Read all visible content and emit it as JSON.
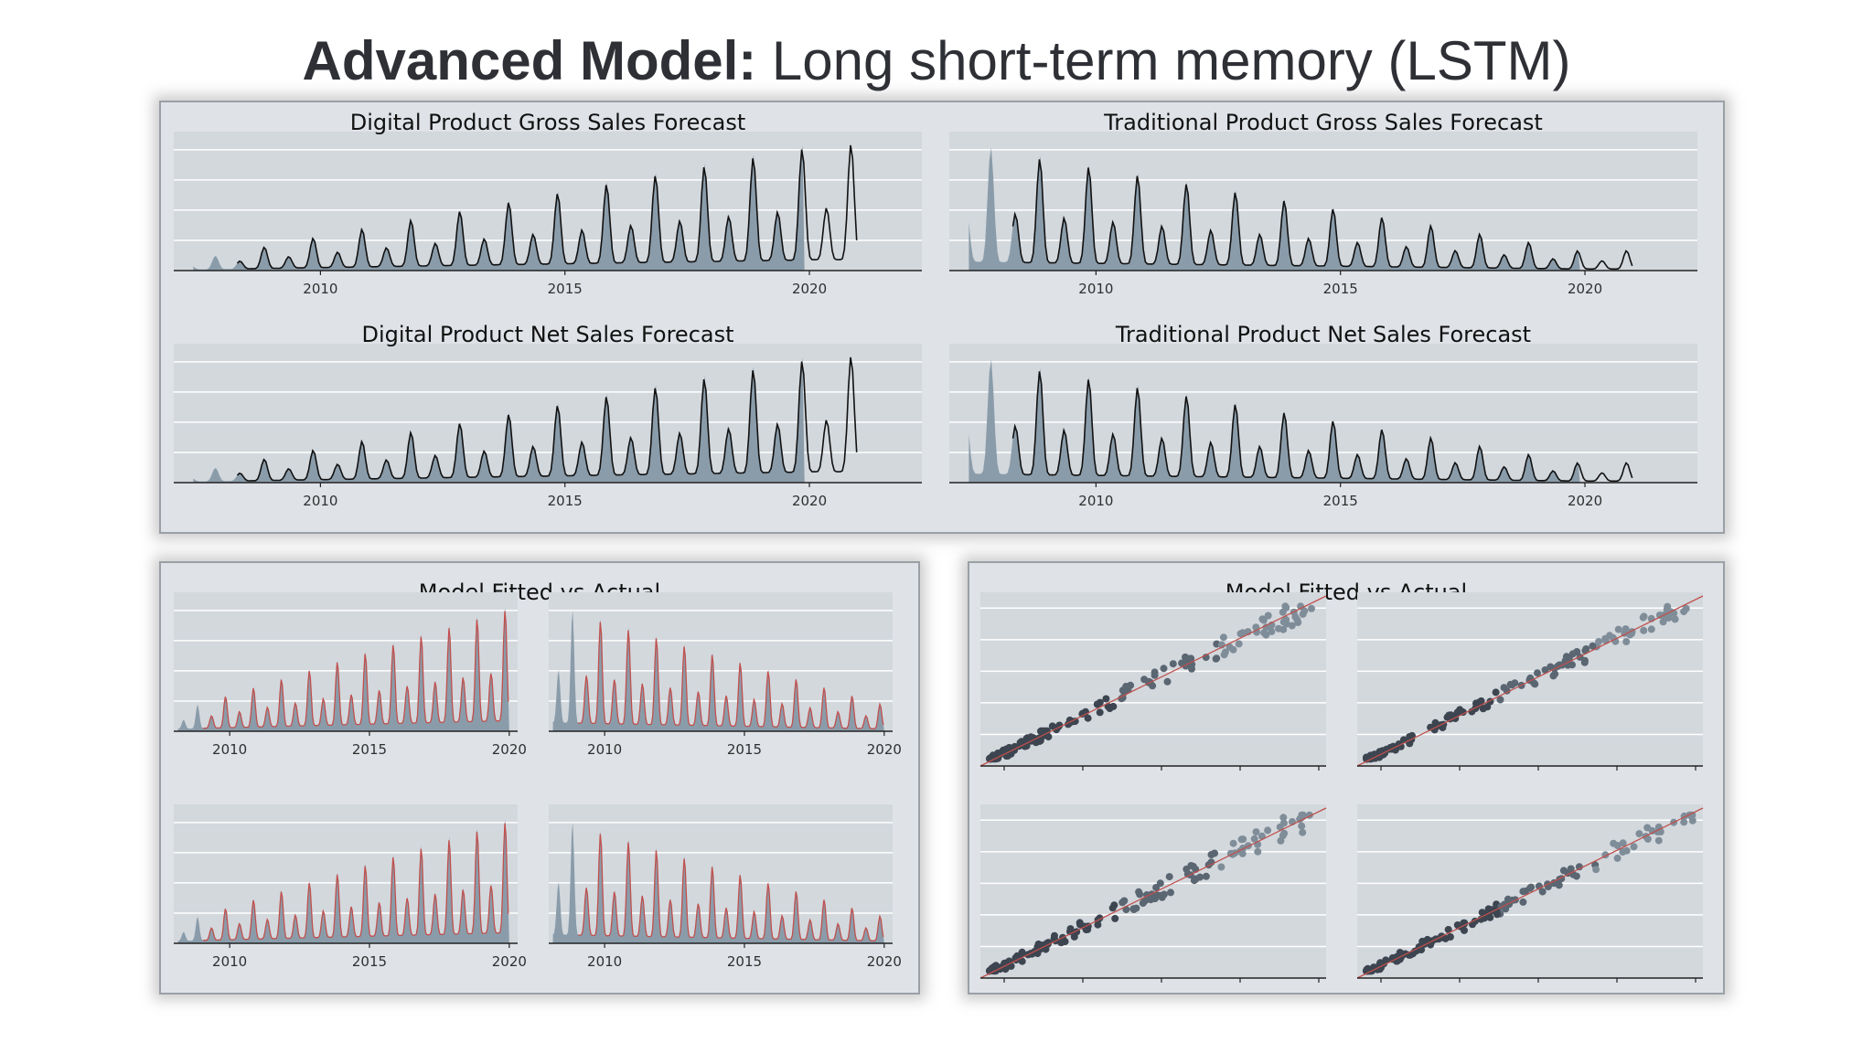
{
  "slide": {
    "title_bold": "Advanced Model:",
    "title_rest": " Long short-term memory (LSTM)"
  },
  "colors": {
    "panel_bg": "#dfe3e8",
    "plot_bg": "#d3d8dd",
    "area_fill": "#8a9caa",
    "forecast_line": "#111111",
    "fit_line": "#c0504d",
    "scatter_point": "#3c4550",
    "diagonal_line": "#c0504d",
    "gridline": "#ffffff"
  },
  "chart_data": [
    {
      "id": "digital-gross",
      "type": "area",
      "title": "Digital Product Gross Sales Forecast",
      "x_ticks": [
        "2010",
        "2015",
        "2020"
      ],
      "x_range": [
        2007.0,
        2022.3
      ],
      "actual_end": 2019.9,
      "forecast_end": 2021.0,
      "series": [
        {
          "role": "actual",
          "trend_start": 0.05,
          "trend_end": 0.55,
          "amplitude_start": 0.08,
          "amplitude_end": 0.95
        },
        {
          "role": "forecast",
          "trend_start": 0.05,
          "trend_end": 0.55,
          "amplitude_start": 0.08,
          "amplitude_end": 0.95
        }
      ]
    },
    {
      "id": "traditional-gross",
      "type": "area",
      "title": "Traditional Product Gross Sales Forecast",
      "x_ticks": [
        "2010",
        "2015",
        "2020"
      ],
      "x_range": [
        2007.0,
        2022.3
      ],
      "actual_end": 2019.9,
      "forecast_end": 2021.0,
      "series": [
        {
          "role": "actual",
          "trend_start": 0.45,
          "trend_end": 0.08,
          "amplitude_start": 0.98,
          "amplitude_end": 0.15
        },
        {
          "role": "forecast",
          "trend_start": 0.45,
          "trend_end": 0.08,
          "amplitude_start": 0.98,
          "amplitude_end": 0.15
        }
      ]
    },
    {
      "id": "digital-net",
      "type": "area",
      "title": "Digital Product Net Sales Forecast",
      "x_ticks": [
        "2010",
        "2015",
        "2020"
      ],
      "x_range": [
        2007.0,
        2022.3
      ],
      "actual_end": 2019.9,
      "forecast_end": 2021.0,
      "series": [
        {
          "role": "actual",
          "trend_start": 0.05,
          "trend_end": 0.55,
          "amplitude_start": 0.08,
          "amplitude_end": 0.95
        },
        {
          "role": "forecast",
          "trend_start": 0.05,
          "trend_end": 0.55,
          "amplitude_start": 0.08,
          "amplitude_end": 0.95
        }
      ]
    },
    {
      "id": "traditional-net",
      "type": "area",
      "title": "Traditional Product Net Sales Forecast",
      "x_ticks": [
        "2010",
        "2015",
        "2020"
      ],
      "x_range": [
        2007.0,
        2022.3
      ],
      "actual_end": 2019.9,
      "forecast_end": 2021.0,
      "series": [
        {
          "role": "actual",
          "trend_start": 0.45,
          "trend_end": 0.08,
          "amplitude_start": 0.98,
          "amplitude_end": 0.15
        },
        {
          "role": "forecast",
          "trend_start": 0.45,
          "trend_end": 0.08,
          "amplitude_start": 0.98,
          "amplitude_end": 0.15
        }
      ]
    },
    {
      "id": "fitted-vs-actual-series",
      "type": "area",
      "title": "Model Fitted vs Actual",
      "x_ticks": [
        "2010",
        "2015",
        "2020"
      ],
      "x_range": [
        2008.0,
        2020.3
      ],
      "subplots": [
        {
          "pattern": "rising",
          "trend_start": 0.12,
          "trend_end": 0.55,
          "amplitude_start": 0.15,
          "amplitude_end": 0.95
        },
        {
          "pattern": "declining",
          "trend_start": 0.45,
          "trend_end": 0.12,
          "amplitude_start": 0.98,
          "amplitude_end": 0.2
        },
        {
          "pattern": "rising",
          "trend_start": 0.12,
          "trend_end": 0.55,
          "amplitude_start": 0.15,
          "amplitude_end": 0.95
        },
        {
          "pattern": "declining",
          "trend_start": 0.45,
          "trend_end": 0.12,
          "amplitude_start": 0.98,
          "amplitude_end": 0.2
        }
      ]
    },
    {
      "id": "fitted-vs-actual-scatter",
      "type": "scatter",
      "title": "Model Fitted vs Actual",
      "subplots": [
        {
          "n_points": 150,
          "spread": 0.06
        },
        {
          "n_points": 150,
          "spread": 0.05
        },
        {
          "n_points": 150,
          "spread": 0.06
        },
        {
          "n_points": 150,
          "spread": 0.05
        }
      ]
    }
  ]
}
